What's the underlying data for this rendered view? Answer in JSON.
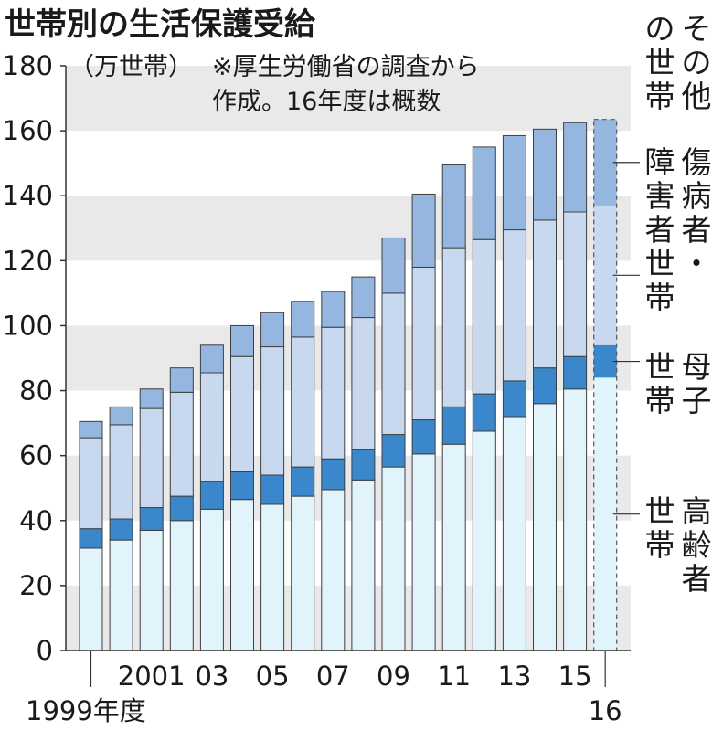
{
  "chart_data": {
    "type": "bar",
    "stacked": true,
    "title": "世帯別の生活保護受給",
    "unit_label": "（万世帯）",
    "note_lines": [
      "※厚生労働省の調査から",
      "作成。16年度は概数"
    ],
    "categories": [
      "1999",
      "2000",
      "2001",
      "2002",
      "2003",
      "2004",
      "2005",
      "2006",
      "2007",
      "2008",
      "2009",
      "2010",
      "2011",
      "2012",
      "2013",
      "2014",
      "2015",
      "2016"
    ],
    "x_tick_labels": [
      {
        "index": 0,
        "label": "1999年度",
        "row": 2
      },
      {
        "index": 2,
        "label": "2001",
        "row": 1
      },
      {
        "index": 4,
        "label": "03",
        "row": 1
      },
      {
        "index": 6,
        "label": "05",
        "row": 1
      },
      {
        "index": 8,
        "label": "07",
        "row": 1
      },
      {
        "index": 10,
        "label": "09",
        "row": 1
      },
      {
        "index": 12,
        "label": "11",
        "row": 1
      },
      {
        "index": 14,
        "label": "13",
        "row": 1
      },
      {
        "index": 16,
        "label": "15",
        "row": 1
      },
      {
        "index": 17,
        "label": "16",
        "row": 2
      }
    ],
    "ylim": [
      0,
      180
    ],
    "yticks": [
      "0",
      "20",
      "40",
      "60",
      "80",
      "100",
      "120",
      "140",
      "160",
      "180"
    ],
    "estimate_index": 17,
    "series": [
      {
        "name": "高齢者世帯",
        "label_lines": [
          "高齢者",
          "世帯"
        ],
        "color": "#e1f3fb",
        "values": [
          31.5,
          34,
          37,
          40,
          43.5,
          46.5,
          45,
          47.5,
          49.5,
          52.5,
          56.5,
          60.5,
          63.5,
          67.5,
          72,
          76,
          80.5,
          84
        ]
      },
      {
        "name": "母子世帯",
        "label_lines": [
          "母子",
          "世帯"
        ],
        "color": "#3a87cb",
        "values": [
          6,
          6.5,
          7,
          7.5,
          8.5,
          8.5,
          9,
          9,
          9.5,
          9.5,
          10,
          10.5,
          11.5,
          11.5,
          11,
          11,
          10,
          10
        ]
      },
      {
        "name": "傷病者・障害者世帯",
        "label_lines": [
          "傷病者・",
          "障害者世帯"
        ],
        "color": "#c8d8ee",
        "values": [
          28,
          29,
          30.5,
          32,
          33.5,
          35.5,
          39.5,
          40,
          40.5,
          40.5,
          43.5,
          47,
          49,
          47.5,
          46.5,
          45.5,
          44.5,
          43
        ]
      },
      {
        "name": "その他の世帯",
        "label_lines": [
          "その他",
          "の世帯"
        ],
        "color": "#95b6df",
        "values": [
          5,
          5.5,
          6,
          7.5,
          8.5,
          9.5,
          10.5,
          11,
          11,
          12.5,
          17,
          22.5,
          25.5,
          28.5,
          29,
          28,
          27.5,
          26.5
        ]
      }
    ],
    "grid": "banded",
    "legend_placement": "right"
  }
}
